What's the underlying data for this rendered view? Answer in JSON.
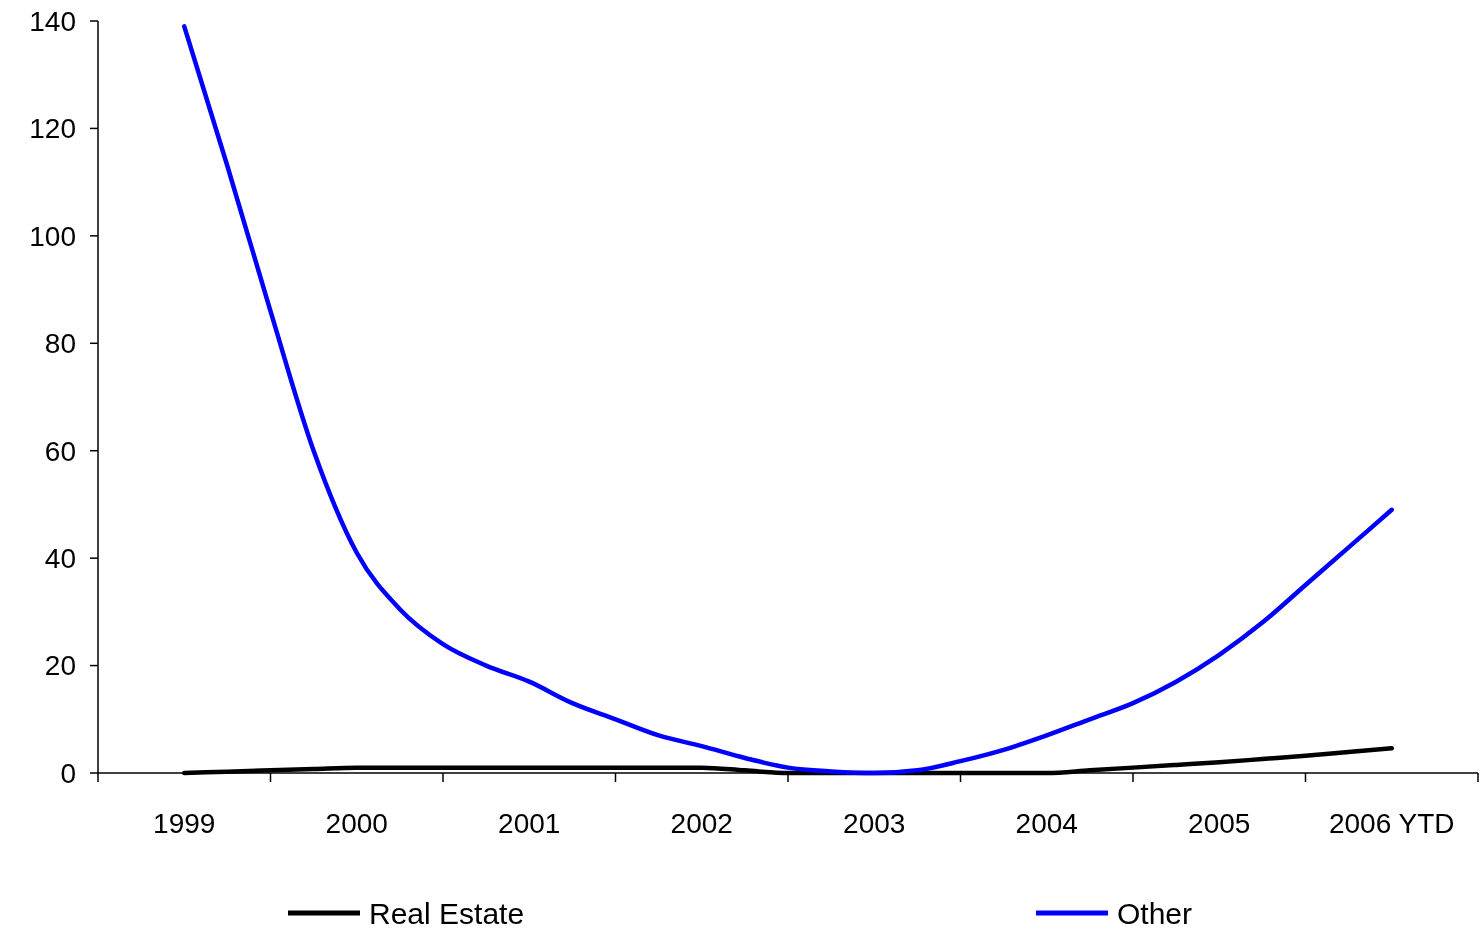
{
  "chart_data": {
    "type": "line",
    "categories": [
      "1999",
      null,
      null,
      null,
      "2000",
      null,
      null,
      null,
      "2001",
      null,
      null,
      null,
      "2002",
      null,
      null,
      null,
      "2003",
      null,
      null,
      null,
      "2004",
      null,
      null,
      null,
      "2005",
      null,
      null,
      null,
      "2006 YTD"
    ],
    "series": [
      {
        "name": "Real Estate",
        "color": "#000000",
        "values": [
          0,
          0.25,
          0.5,
          0.75,
          1,
          1,
          1,
          1,
          1,
          1,
          1,
          1,
          1,
          0.5,
          0,
          0,
          0,
          0,
          0,
          0,
          0,
          0.5,
          1,
          1.5,
          2,
          2.6,
          3.2,
          3.9,
          4.6
        ]
      },
      {
        "name": "Other",
        "color": "#0000ff",
        "values": [
          139,
          113,
          86,
          60,
          41,
          30.5,
          24,
          20,
          17,
          13,
          10,
          7,
          5,
          2.8,
          1,
          0.3,
          0,
          0.5,
          2.2,
          4.3,
          7,
          10,
          13,
          17,
          22,
          28,
          35,
          42,
          49
        ]
      }
    ],
    "ylim": [
      0,
      140
    ],
    "yticks": [
      0,
      20,
      40,
      60,
      80,
      100,
      120,
      140
    ],
    "grid": false,
    "legend": "bottom",
    "marker": "none",
    "line_style": "solid"
  }
}
